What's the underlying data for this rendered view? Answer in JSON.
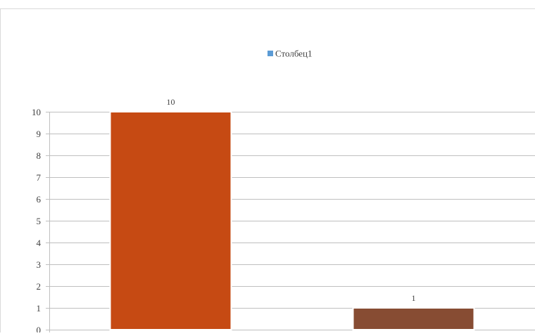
{
  "chart_data": {
    "type": "bar",
    "categories": [
      "",
      ""
    ],
    "series": [
      {
        "name": "Столбец1",
        "values": [
          10,
          1
        ]
      }
    ],
    "bar_colors": [
      "#C64A13",
      "#874C33"
    ],
    "legend_color": "#5B9BD5",
    "ylim": [
      0,
      10
    ],
    "yticks": [
      "0",
      "1",
      "2",
      "3",
      "4",
      "5",
      "6",
      "7",
      "8",
      "9",
      "10"
    ],
    "data_labels": [
      "10",
      "1"
    ],
    "grid": true,
    "legend_position": "top",
    "title": "",
    "xlabel": "",
    "ylabel": ""
  }
}
